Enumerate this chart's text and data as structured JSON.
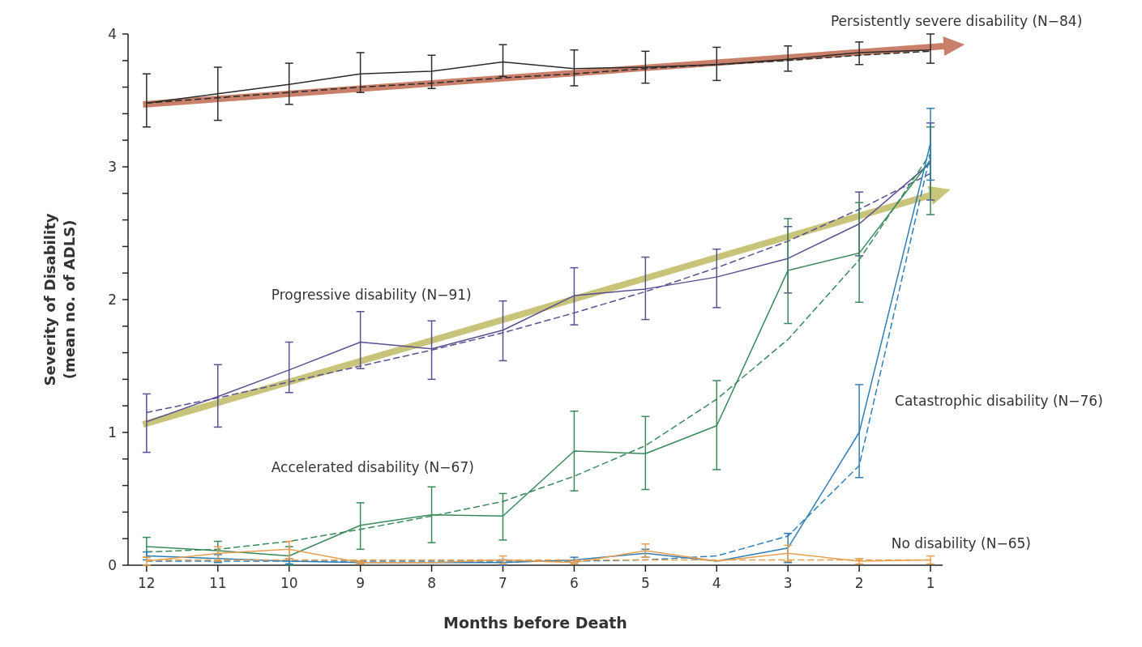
{
  "chart_data": {
    "type": "line",
    "xlabel": "Months before Death",
    "ylabel": "Severity of Disability\n(mean no. of ADLS)",
    "x": [
      12,
      11,
      10,
      9,
      8,
      7,
      6,
      5,
      4,
      3,
      2,
      1
    ],
    "xlim": [
      12.26,
      0.83
    ],
    "xticks": [
      12,
      11,
      10,
      9,
      8,
      7,
      6,
      5,
      4,
      3,
      2,
      1
    ],
    "ylim": [
      0,
      4
    ],
    "yticks": [
      0,
      {
        "value": 0.2,
        "label": null
      },
      {
        "value": 0.4,
        "label": null
      },
      {
        "value": 0.6,
        "label": null
      },
      {
        "value": 0.8,
        "label": null
      },
      1,
      {
        "value": 1.2,
        "label": null
      },
      {
        "value": 1.4,
        "label": null
      },
      {
        "value": 1.6,
        "label": null
      },
      {
        "value": 1.8,
        "label": null
      },
      2,
      {
        "value": 2.2,
        "label": null
      },
      {
        "value": 2.4,
        "label": null
      },
      {
        "value": 2.6,
        "label": null
      },
      {
        "value": 2.8,
        "label": null
      },
      3,
      {
        "value": 3.2,
        "label": null
      },
      {
        "value": 3.4,
        "label": null
      },
      {
        "value": 3.6,
        "label": null
      },
      {
        "value": 3.8,
        "label": null
      },
      4
    ],
    "grid": false,
    "marker": "none",
    "series": [
      {
        "name": "Persistently severe disability (N−84)",
        "color": "#2b2b2b",
        "line_style": "solid",
        "values": [
          3.48,
          3.55,
          3.62,
          3.7,
          3.72,
          3.79,
          3.74,
          3.75,
          3.77,
          3.81,
          3.86,
          3.88
        ],
        "errors": [
          [
            3.3,
            3.7
          ],
          [
            3.35,
            3.75
          ],
          [
            3.47,
            3.78
          ],
          [
            3.56,
            3.86
          ],
          [
            3.59,
            3.84
          ],
          [
            3.68,
            3.92
          ],
          [
            3.61,
            3.88
          ],
          [
            3.63,
            3.87
          ],
          [
            3.65,
            3.9
          ],
          [
            3.72,
            3.91
          ],
          [
            3.77,
            3.94
          ],
          [
            3.78,
            4.0
          ]
        ]
      },
      {
        "color": "#2b2b2b",
        "line_style": "dashed",
        "values": [
          3.48,
          3.52,
          3.56,
          3.6,
          3.63,
          3.67,
          3.7,
          3.74,
          3.77,
          3.8,
          3.84,
          3.87
        ]
      },
      {
        "name": "Progressive disability (N−91)",
        "color": "#5a4f8f",
        "line_style": "solid",
        "values": [
          1.08,
          1.27,
          1.47,
          1.68,
          1.63,
          1.77,
          2.03,
          2.08,
          2.17,
          2.31,
          2.57,
          3.03
        ],
        "errors": [
          [
            0.85,
            1.29
          ],
          [
            1.04,
            1.51
          ],
          [
            1.3,
            1.68
          ],
          [
            1.48,
            1.91
          ],
          [
            1.4,
            1.84
          ],
          [
            1.54,
            1.99
          ],
          [
            1.81,
            2.24
          ],
          [
            1.85,
            2.32
          ],
          [
            1.94,
            2.38
          ],
          [
            2.05,
            2.55
          ],
          [
            2.33,
            2.81
          ],
          [
            2.75,
            3.33
          ]
        ]
      },
      {
        "color": "#5a4f8f",
        "line_style": "dashed",
        "values": [
          1.15,
          1.26,
          1.38,
          1.5,
          1.62,
          1.75,
          1.9,
          2.06,
          2.24,
          2.44,
          2.68,
          2.95
        ]
      },
      {
        "name": "Accelerated disability (N−67)",
        "color": "#3a8a5c",
        "line_style": "solid",
        "values": [
          0.14,
          0.11,
          0.07,
          0.3,
          0.38,
          0.37,
          0.86,
          0.84,
          1.05,
          2.22,
          2.35,
          3.05
        ],
        "errors": [
          [
            0.06,
            0.21
          ],
          [
            0.03,
            0.18
          ],
          [
            0.0,
            0.14
          ],
          [
            0.12,
            0.47
          ],
          [
            0.17,
            0.59
          ],
          [
            0.19,
            0.54
          ],
          [
            0.56,
            1.16
          ],
          [
            0.57,
            1.12
          ],
          [
            0.72,
            1.39
          ],
          [
            1.82,
            2.61
          ],
          [
            1.98,
            2.73
          ],
          [
            2.64,
            3.3
          ]
        ]
      },
      {
        "color": "#3a8a5c",
        "line_style": "dashed",
        "values": [
          0.1,
          0.12,
          0.18,
          0.27,
          0.37,
          0.48,
          0.67,
          0.9,
          1.25,
          1.7,
          2.3,
          3.1
        ]
      },
      {
        "name": "Catastrophic disability (N−76)",
        "color": "#2f7fb5",
        "line_style": "solid",
        "values": [
          0.07,
          0.05,
          0.03,
          0.02,
          0.02,
          0.02,
          0.04,
          0.09,
          0.03,
          0.13,
          1.0,
          3.18
        ],
        "errors": [
          [
            0.04,
            0.1
          ],
          [
            0.02,
            0.08
          ],
          [
            0.01,
            0.05
          ],
          [
            0.01,
            0.03
          ],
          null,
          [
            0.0,
            0.04
          ],
          [
            0.02,
            0.06
          ],
          [
            0.06,
            0.12
          ],
          null,
          [
            0.02,
            0.24
          ],
          [
            0.66,
            1.36
          ],
          [
            2.9,
            3.44
          ]
        ]
      },
      {
        "color": "#2f7fb5",
        "line_style": "dashed",
        "values": [
          0.03,
          0.03,
          0.03,
          0.03,
          0.03,
          0.03,
          0.03,
          0.04,
          0.07,
          0.22,
          0.75,
          3.1
        ]
      },
      {
        "name": "No disability (N−65)",
        "color": "#e8a050",
        "line_style": "solid",
        "values": [
          0.03,
          0.09,
          0.12,
          0.02,
          0.02,
          0.04,
          0.02,
          0.11,
          0.03,
          0.09,
          0.03,
          0.04
        ],
        "errors": [
          [
            0.0,
            0.06
          ],
          [
            0.03,
            0.14
          ],
          [
            0.05,
            0.18
          ],
          [
            0.01,
            0.03
          ],
          null,
          [
            0.01,
            0.07
          ],
          [
            0.01,
            0.03
          ],
          [
            0.06,
            0.16
          ],
          null,
          [
            0.03,
            0.15
          ],
          [
            0.01,
            0.05
          ],
          [
            0.01,
            0.07
          ]
        ]
      },
      {
        "color": "#e8a050",
        "line_style": "dashed",
        "values": [
          0.04,
          0.04,
          0.04,
          0.04,
          0.04,
          0.04,
          0.04,
          0.04,
          0.04,
          0.04,
          0.04,
          0.04
        ]
      }
    ]
  }
}
